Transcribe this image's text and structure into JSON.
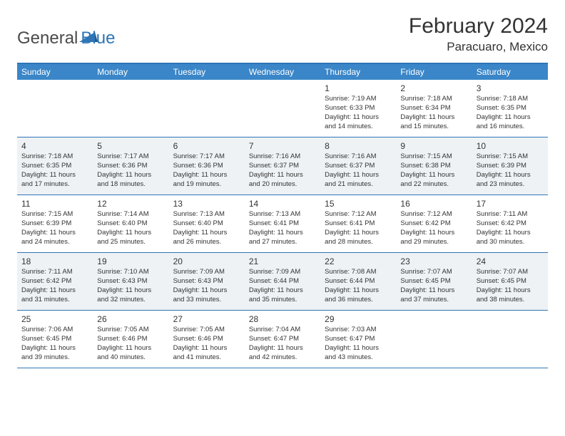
{
  "logo": {
    "text1": "General",
    "text2": "Blue"
  },
  "title": "February 2024",
  "location": "Paracuaro, Mexico",
  "colors": {
    "header_bg": "#3a86c8",
    "header_text": "#ffffff",
    "border": "#2e75b6",
    "alt_row_bg": "#eef2f5",
    "text": "#333333",
    "logo_gray": "#4a4a4a",
    "logo_blue": "#2e75b6"
  },
  "day_names": [
    "Sunday",
    "Monday",
    "Tuesday",
    "Wednesday",
    "Thursday",
    "Friday",
    "Saturday"
  ],
  "weeks": [
    {
      "alt": false,
      "cells": [
        null,
        null,
        null,
        null,
        {
          "n": "1",
          "sr": "Sunrise: 7:19 AM",
          "ss": "Sunset: 6:33 PM",
          "d1": "Daylight: 11 hours",
          "d2": "and 14 minutes."
        },
        {
          "n": "2",
          "sr": "Sunrise: 7:18 AM",
          "ss": "Sunset: 6:34 PM",
          "d1": "Daylight: 11 hours",
          "d2": "and 15 minutes."
        },
        {
          "n": "3",
          "sr": "Sunrise: 7:18 AM",
          "ss": "Sunset: 6:35 PM",
          "d1": "Daylight: 11 hours",
          "d2": "and 16 minutes."
        }
      ]
    },
    {
      "alt": true,
      "cells": [
        {
          "n": "4",
          "sr": "Sunrise: 7:18 AM",
          "ss": "Sunset: 6:35 PM",
          "d1": "Daylight: 11 hours",
          "d2": "and 17 minutes."
        },
        {
          "n": "5",
          "sr": "Sunrise: 7:17 AM",
          "ss": "Sunset: 6:36 PM",
          "d1": "Daylight: 11 hours",
          "d2": "and 18 minutes."
        },
        {
          "n": "6",
          "sr": "Sunrise: 7:17 AM",
          "ss": "Sunset: 6:36 PM",
          "d1": "Daylight: 11 hours",
          "d2": "and 19 minutes."
        },
        {
          "n": "7",
          "sr": "Sunrise: 7:16 AM",
          "ss": "Sunset: 6:37 PM",
          "d1": "Daylight: 11 hours",
          "d2": "and 20 minutes."
        },
        {
          "n": "8",
          "sr": "Sunrise: 7:16 AM",
          "ss": "Sunset: 6:37 PM",
          "d1": "Daylight: 11 hours",
          "d2": "and 21 minutes."
        },
        {
          "n": "9",
          "sr": "Sunrise: 7:15 AM",
          "ss": "Sunset: 6:38 PM",
          "d1": "Daylight: 11 hours",
          "d2": "and 22 minutes."
        },
        {
          "n": "10",
          "sr": "Sunrise: 7:15 AM",
          "ss": "Sunset: 6:39 PM",
          "d1": "Daylight: 11 hours",
          "d2": "and 23 minutes."
        }
      ]
    },
    {
      "alt": false,
      "cells": [
        {
          "n": "11",
          "sr": "Sunrise: 7:15 AM",
          "ss": "Sunset: 6:39 PM",
          "d1": "Daylight: 11 hours",
          "d2": "and 24 minutes."
        },
        {
          "n": "12",
          "sr": "Sunrise: 7:14 AM",
          "ss": "Sunset: 6:40 PM",
          "d1": "Daylight: 11 hours",
          "d2": "and 25 minutes."
        },
        {
          "n": "13",
          "sr": "Sunrise: 7:13 AM",
          "ss": "Sunset: 6:40 PM",
          "d1": "Daylight: 11 hours",
          "d2": "and 26 minutes."
        },
        {
          "n": "14",
          "sr": "Sunrise: 7:13 AM",
          "ss": "Sunset: 6:41 PM",
          "d1": "Daylight: 11 hours",
          "d2": "and 27 minutes."
        },
        {
          "n": "15",
          "sr": "Sunrise: 7:12 AM",
          "ss": "Sunset: 6:41 PM",
          "d1": "Daylight: 11 hours",
          "d2": "and 28 minutes."
        },
        {
          "n": "16",
          "sr": "Sunrise: 7:12 AM",
          "ss": "Sunset: 6:42 PM",
          "d1": "Daylight: 11 hours",
          "d2": "and 29 minutes."
        },
        {
          "n": "17",
          "sr": "Sunrise: 7:11 AM",
          "ss": "Sunset: 6:42 PM",
          "d1": "Daylight: 11 hours",
          "d2": "and 30 minutes."
        }
      ]
    },
    {
      "alt": true,
      "cells": [
        {
          "n": "18",
          "sr": "Sunrise: 7:11 AM",
          "ss": "Sunset: 6:42 PM",
          "d1": "Daylight: 11 hours",
          "d2": "and 31 minutes."
        },
        {
          "n": "19",
          "sr": "Sunrise: 7:10 AM",
          "ss": "Sunset: 6:43 PM",
          "d1": "Daylight: 11 hours",
          "d2": "and 32 minutes."
        },
        {
          "n": "20",
          "sr": "Sunrise: 7:09 AM",
          "ss": "Sunset: 6:43 PM",
          "d1": "Daylight: 11 hours",
          "d2": "and 33 minutes."
        },
        {
          "n": "21",
          "sr": "Sunrise: 7:09 AM",
          "ss": "Sunset: 6:44 PM",
          "d1": "Daylight: 11 hours",
          "d2": "and 35 minutes."
        },
        {
          "n": "22",
          "sr": "Sunrise: 7:08 AM",
          "ss": "Sunset: 6:44 PM",
          "d1": "Daylight: 11 hours",
          "d2": "and 36 minutes."
        },
        {
          "n": "23",
          "sr": "Sunrise: 7:07 AM",
          "ss": "Sunset: 6:45 PM",
          "d1": "Daylight: 11 hours",
          "d2": "and 37 minutes."
        },
        {
          "n": "24",
          "sr": "Sunrise: 7:07 AM",
          "ss": "Sunset: 6:45 PM",
          "d1": "Daylight: 11 hours",
          "d2": "and 38 minutes."
        }
      ]
    },
    {
      "alt": false,
      "cells": [
        {
          "n": "25",
          "sr": "Sunrise: 7:06 AM",
          "ss": "Sunset: 6:45 PM",
          "d1": "Daylight: 11 hours",
          "d2": "and 39 minutes."
        },
        {
          "n": "26",
          "sr": "Sunrise: 7:05 AM",
          "ss": "Sunset: 6:46 PM",
          "d1": "Daylight: 11 hours",
          "d2": "and 40 minutes."
        },
        {
          "n": "27",
          "sr": "Sunrise: 7:05 AM",
          "ss": "Sunset: 6:46 PM",
          "d1": "Daylight: 11 hours",
          "d2": "and 41 minutes."
        },
        {
          "n": "28",
          "sr": "Sunrise: 7:04 AM",
          "ss": "Sunset: 6:47 PM",
          "d1": "Daylight: 11 hours",
          "d2": "and 42 minutes."
        },
        {
          "n": "29",
          "sr": "Sunrise: 7:03 AM",
          "ss": "Sunset: 6:47 PM",
          "d1": "Daylight: 11 hours",
          "d2": "and 43 minutes."
        },
        null,
        null
      ]
    }
  ]
}
